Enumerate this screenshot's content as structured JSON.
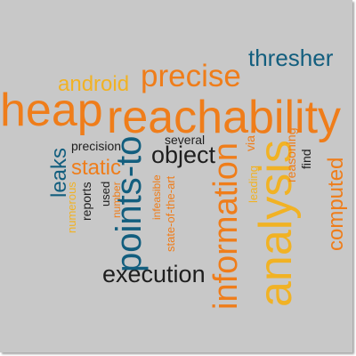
{
  "colors": {
    "background": "#c8c8c8",
    "navy": "#125e7e",
    "orange": "#ef7d1a",
    "gold": "#f1b224",
    "dark": "#1e1e1e"
  },
  "words": {
    "reachability": "reachability",
    "heap": "heap",
    "analysis": "analysis",
    "information": "information",
    "points_to": "points-to",
    "precise": "precise",
    "thresher": "thresher",
    "android": "android",
    "execution": "execution",
    "object": "object",
    "static": "static",
    "leaks": "leaks",
    "computed": "computed",
    "precision": "precision",
    "several": "several",
    "via": "via",
    "reasoning": "reasoning",
    "find": "find",
    "leading": "leading",
    "reports": "reports",
    "numerous": "numerous",
    "used": "used",
    "number": "number",
    "infeasible": "infeasible",
    "state_of_the_art": "state-of-the-art"
  }
}
